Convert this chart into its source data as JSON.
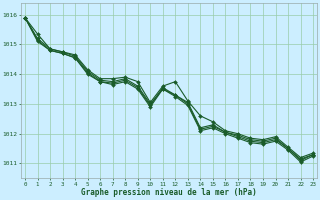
{
  "bg_color": "#cceeff",
  "grid_color": "#99ccaa",
  "line_color": "#1a5c2a",
  "marker_color": "#1a5c2a",
  "xlabel": "Graphe pression niveau de la mer (hPa)",
  "xlabel_color": "#1a5c2a",
  "tick_color": "#1a5c2a",
  "spine_color": "#99aaaa",
  "xlim": [
    -0.3,
    23.3
  ],
  "ylim": [
    1010.5,
    1016.4
  ],
  "yticks": [
    1011,
    1012,
    1013,
    1014,
    1015,
    1016
  ],
  "xticks": [
    0,
    1,
    2,
    3,
    4,
    5,
    6,
    7,
    8,
    9,
    10,
    11,
    12,
    13,
    14,
    15,
    16,
    17,
    18,
    19,
    20,
    21,
    22,
    23
  ],
  "series": [
    [
      1015.9,
      1015.35,
      1014.85,
      1014.75,
      1014.65,
      1014.15,
      1013.85,
      1013.85,
      1013.9,
      1013.75,
      1013.05,
      1013.6,
      1013.75,
      1013.1,
      1012.6,
      1012.4,
      1012.1,
      1012.0,
      1011.85,
      1011.8,
      1011.9,
      1011.55,
      1011.2,
      1011.35
    ],
    [
      1015.9,
      1015.2,
      1014.85,
      1014.75,
      1014.6,
      1014.1,
      1013.8,
      1013.75,
      1013.85,
      1013.6,
      1013.0,
      1013.5,
      1013.3,
      1013.05,
      1012.2,
      1012.3,
      1012.05,
      1011.95,
      1011.8,
      1011.75,
      1011.85,
      1011.5,
      1011.15,
      1011.3
    ],
    [
      1015.9,
      1015.15,
      1014.8,
      1014.7,
      1014.55,
      1014.05,
      1013.75,
      1013.7,
      1013.8,
      1013.55,
      1012.95,
      1013.55,
      1013.3,
      1013.0,
      1012.15,
      1012.25,
      1012.05,
      1011.9,
      1011.75,
      1011.7,
      1011.8,
      1011.5,
      1011.1,
      1011.3
    ],
    [
      1015.9,
      1015.1,
      1014.8,
      1014.7,
      1014.55,
      1014.0,
      1013.75,
      1013.65,
      1013.75,
      1013.5,
      1012.9,
      1013.5,
      1013.25,
      1012.95,
      1012.1,
      1012.2,
      1012.0,
      1011.85,
      1011.7,
      1011.65,
      1011.75,
      1011.45,
      1011.05,
      1011.25
    ]
  ]
}
